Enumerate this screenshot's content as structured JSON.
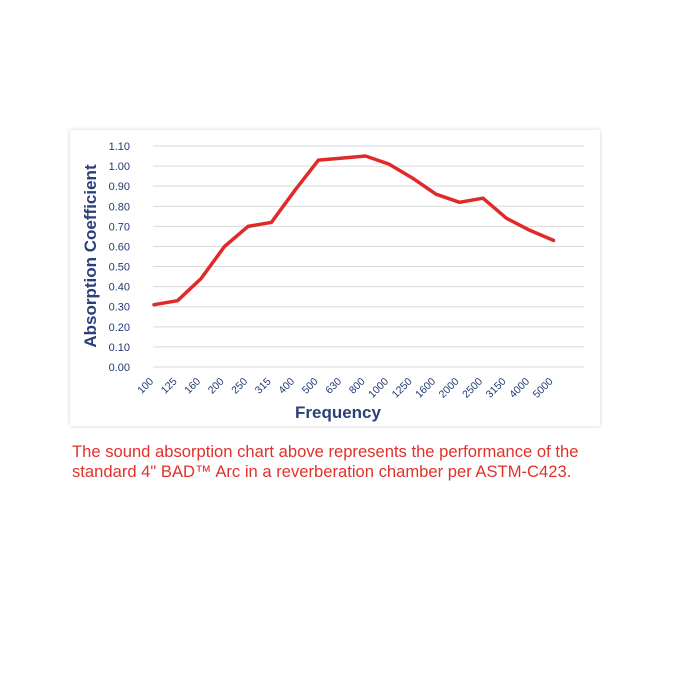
{
  "chart_data": {
    "type": "line",
    "categories": [
      "100",
      "125",
      "160",
      "200",
      "250",
      "315",
      "400",
      "500",
      "630",
      "800",
      "1000",
      "1250",
      "1600",
      "2000",
      "2500",
      "3150",
      "4000",
      "5000"
    ],
    "series": [
      {
        "values": [
          0.31,
          0.33,
          0.44,
          0.6,
          0.7,
          0.72,
          0.88,
          1.03,
          1.04,
          1.05,
          1.01,
          0.94,
          0.86,
          0.82,
          0.84,
          0.74,
          0.68,
          0.63
        ]
      }
    ],
    "xlabel": "Frequency",
    "ylabel": "Absorption Coefficient",
    "ylim": [
      0,
      1.1
    ],
    "ytick_step": 0.1,
    "grid": true,
    "line_color": "#e02a2a",
    "label_color": "#2b3f7a",
    "tick_color": "#1f3a73"
  },
  "caption": "The sound absorption chart above represents the performance of the standard 4\" BAD™ Arc in a reverberation chamber per ASTM-C423."
}
